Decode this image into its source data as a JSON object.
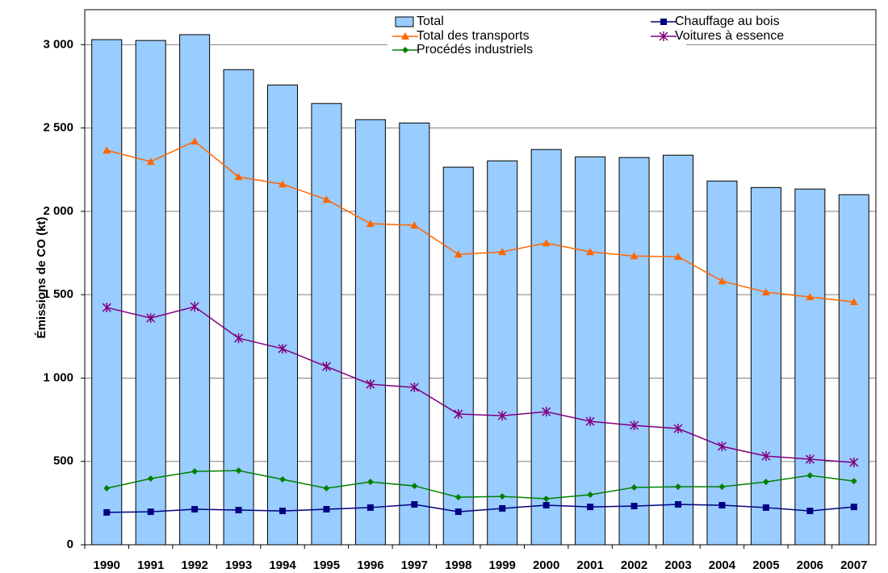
{
  "chart_data": {
    "type": "bar",
    "y_label": "Émissions de CO (kt)",
    "categories": [
      "1990",
      "1991",
      "1992",
      "1993",
      "1994",
      "1995",
      "1996",
      "1997",
      "1998",
      "1999",
      "2000",
      "2001",
      "2002",
      "2003",
      "2004",
      "2005",
      "2006",
      "2007"
    ],
    "ylim": [
      0,
      3200
    ],
    "yticks": [
      0,
      500,
      {
        "value": 1000,
        "label": "1 000"
      },
      {
        "value": 1500,
        "label": "1 500"
      },
      {
        "value": 2000,
        "label": "2 000"
      },
      {
        "value": 2500,
        "label": "2 500"
      },
      {
        "value": 3000,
        "label": "3 000"
      }
    ],
    "grid": true,
    "series": [
      {
        "name": "Total",
        "kind": "bar",
        "color": "#99ccff",
        "values": [
          3030,
          3025,
          3060,
          2850,
          2758,
          2647,
          2550,
          2530,
          2265,
          2303,
          2371,
          2327,
          2323,
          2337,
          2182,
          2143,
          2134,
          2100
        ]
      },
      {
        "name": "Chauffage au bois",
        "kind": "line",
        "marker": "square",
        "color": "#000080",
        "values": [
          194,
          198,
          213,
          208,
          203,
          213,
          223,
          242,
          198,
          218,
          237,
          227,
          232,
          242,
          237,
          223,
          203,
          227
        ]
      },
      {
        "name": "Total des transports",
        "kind": "line",
        "marker": "triangle",
        "color": "#ff6600",
        "values": [
          2366,
          2298,
          2420,
          2207,
          2163,
          2071,
          1926,
          1916,
          1742,
          1757,
          1810,
          1757,
          1732,
          1728,
          1582,
          1515,
          1486,
          1457
        ]
      },
      {
        "name": "Voitures à essence",
        "kind": "line",
        "marker": "star",
        "color": "#800080",
        "values": [
          1423,
          1360,
          1428,
          1239,
          1176,
          1069,
          963,
          944,
          784,
          774,
          798,
          740,
          716,
          697,
          590,
          532,
          513,
          494
        ]
      },
      {
        "name": "Procédés industriels",
        "kind": "line",
        "marker": "diamond",
        "color": "#008000",
        "values": [
          339,
          397,
          440,
          445,
          392,
          339,
          377,
          353,
          285,
          290,
          276,
          300,
          344,
          348,
          348,
          377,
          416,
          382
        ]
      }
    ]
  }
}
